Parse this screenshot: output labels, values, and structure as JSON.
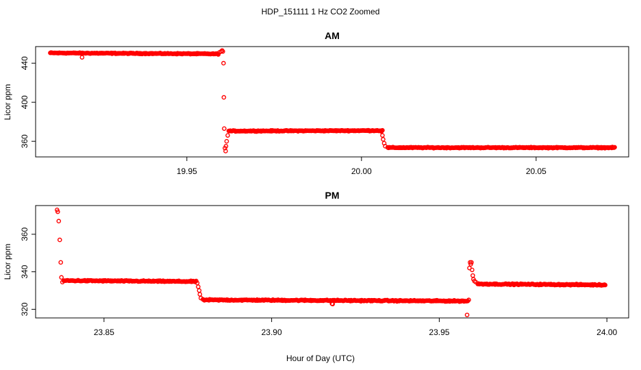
{
  "chart_data": {
    "title": "HDP_151111  1 Hz CO2 Zoomed",
    "xlabel": "Hour of Day (UTC)",
    "panels": [
      {
        "type": "scatter",
        "title": "AM",
        "ylabel": "Licor ppm",
        "xlim": [
          19.9067,
          20.0765
        ],
        "ylim": [
          344,
          457
        ],
        "xticks": [
          19.95,
          20.0,
          20.05
        ],
        "xtick_labels": [
          "19.95",
          "20.00",
          "20.05"
        ],
        "yticks": [
          360,
          400,
          440
        ],
        "ytick_labels": [
          "360",
          "400",
          "440"
        ],
        "segments": [
          {
            "x": [
              19.9109,
              19.959
            ],
            "y": [
              450.5,
              449.5
            ],
            "noise": 0.7
          },
          {
            "x": [
              19.962,
              20.006
            ],
            "y": [
              370.5,
              371.0
            ],
            "noise": 0.7
          },
          {
            "x": [
              20.0075,
              20.0725
            ],
            "y": [
              353.5,
              353.5
            ],
            "noise": 0.7
          }
        ],
        "points": [
          [
            19.92,
            446.0
          ],
          [
            19.9593,
            451.0
          ],
          [
            19.9598,
            452.0
          ],
          [
            19.9601,
            453.0
          ],
          [
            19.9603,
            452.0
          ],
          [
            19.9605,
            440.0
          ],
          [
            19.9606,
            405.0
          ],
          [
            19.9607,
            373.0
          ],
          [
            19.9609,
            353.0
          ],
          [
            19.9611,
            350.0
          ],
          [
            19.9612,
            355.0
          ],
          [
            19.9614,
            360.0
          ],
          [
            19.9617,
            366.0
          ],
          [
            20.0057,
            370.0
          ],
          [
            20.006,
            366.0
          ],
          [
            20.0062,
            362.0
          ],
          [
            20.0065,
            358.0
          ],
          [
            20.0068,
            355.0
          ]
        ]
      },
      {
        "type": "scatter",
        "title": "PM",
        "ylabel": "Licor ppm",
        "xlim": [
          23.8296,
          24.0065
        ],
        "ylim": [
          315.4,
          375.3
        ],
        "xticks": [
          23.85,
          23.9,
          23.95,
          24.0
        ],
        "xtick_labels": [
          "23.85",
          "23.90",
          "23.95",
          "24.00"
        ],
        "yticks": [
          320,
          340,
          360
        ],
        "ytick_labels": [
          "320",
          "340",
          "360"
        ],
        "segments": [
          {
            "x": [
              23.838,
              23.8775
            ],
            "y": [
              335.3,
              334.8
            ],
            "noise": 0.45
          },
          {
            "x": [
              23.8795,
              23.9585
            ],
            "y": [
              325.0,
              324.4
            ],
            "noise": 0.45
          },
          {
            "x": [
              23.9615,
              23.9995
            ],
            "y": [
              333.5,
              333.0
            ],
            "noise": 0.45
          }
        ],
        "points": [
          [
            23.836,
            373.0
          ],
          [
            23.8362,
            372.0
          ],
          [
            23.8365,
            367.0
          ],
          [
            23.8368,
            357.0
          ],
          [
            23.8371,
            345.0
          ],
          [
            23.8373,
            337.0
          ],
          [
            23.8376,
            334.5
          ],
          [
            23.8778,
            334.0
          ],
          [
            23.8781,
            332.0
          ],
          [
            23.8784,
            330.0
          ],
          [
            23.8786,
            328.0
          ],
          [
            23.8789,
            326.0
          ],
          [
            23.918,
            323.0
          ],
          [
            23.9182,
            322.8
          ],
          [
            23.9583,
            317.0
          ],
          [
            23.9588,
            325.0
          ],
          [
            23.959,
            342.0
          ],
          [
            23.9592,
            345.0
          ],
          [
            23.9594,
            344.0
          ],
          [
            23.9596,
            345.0
          ],
          [
            23.9598,
            341.0
          ],
          [
            23.96,
            338.0
          ],
          [
            23.9602,
            336.0
          ],
          [
            23.9605,
            335.0
          ],
          [
            23.9609,
            334.5
          ]
        ]
      }
    ]
  }
}
